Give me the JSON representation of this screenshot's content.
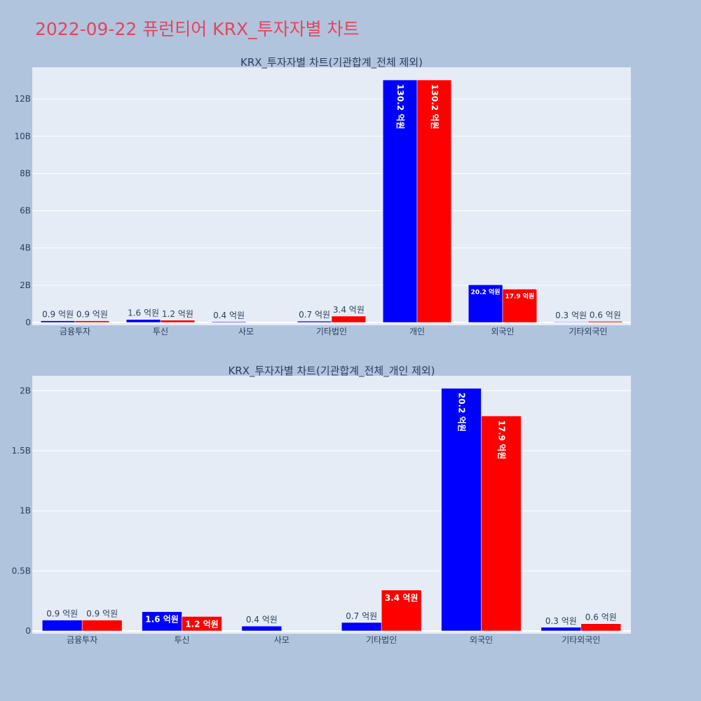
{
  "page": {
    "title": "2022-09-22 퓨런티어 KRX_투자자별 차트",
    "background": "#b0c4de",
    "plot_background": "#e5ecf6",
    "title_color": "#e8435a"
  },
  "colors": {
    "series_a": "#0000ff",
    "series_b": "#ff0000"
  },
  "chart_data": [
    {
      "type": "bar",
      "title": "KRX_투자자별 차트(기관합계_전체 제외)",
      "categories": [
        "금융투자",
        "투신",
        "사모",
        "기타법인",
        "개인",
        "외국인",
        "기타외국인"
      ],
      "series": [
        {
          "color": "#0000ff",
          "values": [
            90000000,
            160000000,
            40000000,
            70000000,
            13020000000,
            2020000000,
            30000000
          ],
          "labels": [
            "0.9 억원",
            "1.6 억원",
            "0.4 억원",
            "0.7 억원",
            "130.2 억원",
            "20.2 억원",
            "0.3 억원"
          ]
        },
        {
          "color": "#ff0000",
          "values": [
            90000000,
            120000000,
            0,
            340000000,
            13020000000,
            1790000000,
            60000000
          ],
          "labels": [
            "0.9 억원",
            "1.2 억원",
            "",
            "3.4 억원",
            "130.2 억원",
            "17.9 억원",
            "0.6 억원"
          ]
        }
      ],
      "yticks": [
        {
          "value": 0,
          "label": "0"
        },
        {
          "value": 2000000000,
          "label": "2B"
        },
        {
          "value": 4000000000,
          "label": "4B"
        },
        {
          "value": 6000000000,
          "label": "6B"
        },
        {
          "value": 8000000000,
          "label": "8B"
        },
        {
          "value": 10000000000,
          "label": "10B"
        },
        {
          "value": 12000000000,
          "label": "12B"
        }
      ],
      "ylim": [
        0,
        13700000000
      ],
      "grid": true
    },
    {
      "type": "bar",
      "title": "KRX_투자자별 차트(기관합계_전체_개인 제외)",
      "categories": [
        "금융투자",
        "투신",
        "사모",
        "기타법인",
        "외국인",
        "기타외국인"
      ],
      "series": [
        {
          "color": "#0000ff",
          "values": [
            90000000,
            160000000,
            40000000,
            70000000,
            2020000000,
            30000000
          ],
          "labels": [
            "0.9 억원",
            "1.6 억원",
            "0.4 억원",
            "0.7 억원",
            "20.2 억원",
            "0.3 억원"
          ]
        },
        {
          "color": "#ff0000",
          "values": [
            90000000,
            120000000,
            0,
            340000000,
            1790000000,
            60000000
          ],
          "labels": [
            "0.9 억원",
            "1.2 억원",
            "",
            "3.4 억원",
            "17.9 억원",
            "0.6 억원"
          ]
        }
      ],
      "yticks": [
        {
          "value": 0,
          "label": "0"
        },
        {
          "value": 500000000,
          "label": "0.5B"
        },
        {
          "value": 1000000000,
          "label": "1B"
        },
        {
          "value": 1500000000,
          "label": "1.5B"
        },
        {
          "value": 2000000000,
          "label": "2B"
        }
      ],
      "ylim": [
        0,
        2125000000
      ],
      "grid": true
    }
  ]
}
